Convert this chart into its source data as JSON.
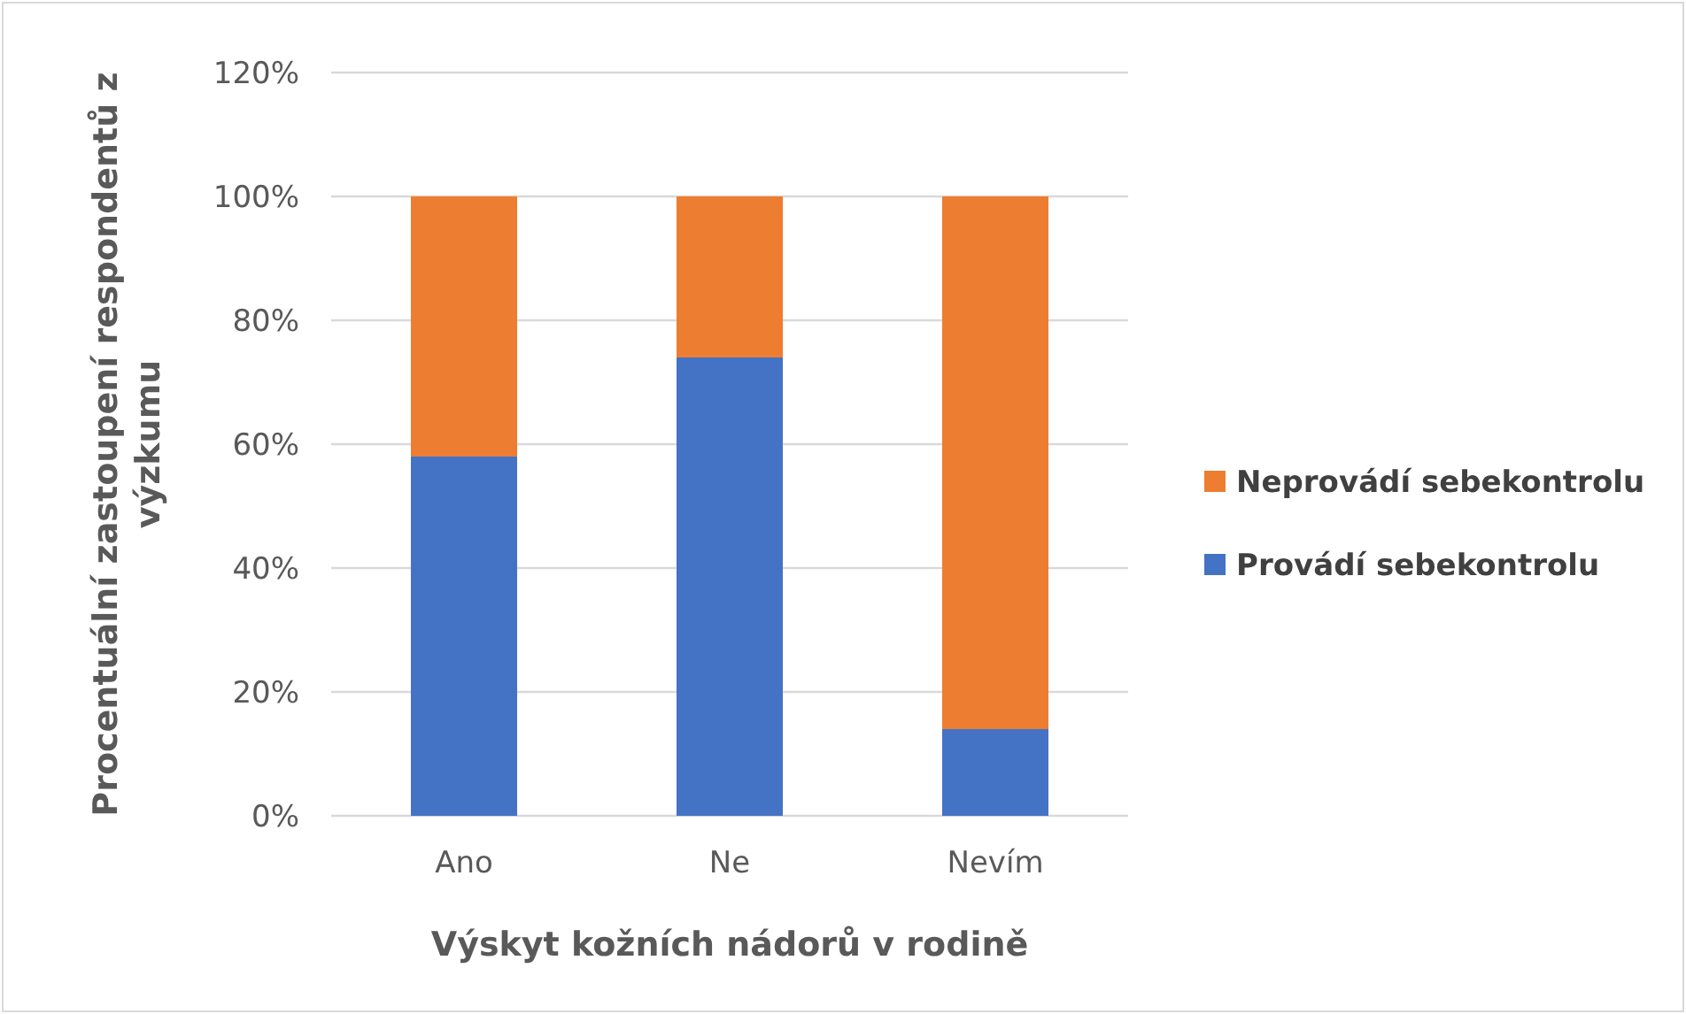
{
  "chart_data": {
    "type": "bar",
    "stacked": true,
    "xlabel": "Výskyt kožních nádorů v rodině",
    "ylabel": "Procentuální zastoupení respondentů z výzkumu",
    "categories": [
      "Ano",
      "Ne",
      "Nevím"
    ],
    "series": [
      {
        "name": "Provádí sebekontrolu",
        "color": "#4472c4",
        "values": [
          58,
          74,
          14
        ]
      },
      {
        "name": "Neprovádí sebekontrolu",
        "color": "#ed7d31",
        "values": [
          42,
          26,
          86
        ]
      }
    ],
    "ylim": [
      0,
      120
    ],
    "yticks": [
      {
        "value": 0,
        "label": "0%"
      },
      {
        "value": 20,
        "label": "20%"
      },
      {
        "value": 40,
        "label": "40%"
      },
      {
        "value": 60,
        "label": "60%"
      },
      {
        "value": 80,
        "label": "80%"
      },
      {
        "value": 100,
        "label": "100%"
      },
      {
        "value": 120,
        "label": "120%"
      }
    ],
    "grid": "y",
    "legend": "right"
  }
}
